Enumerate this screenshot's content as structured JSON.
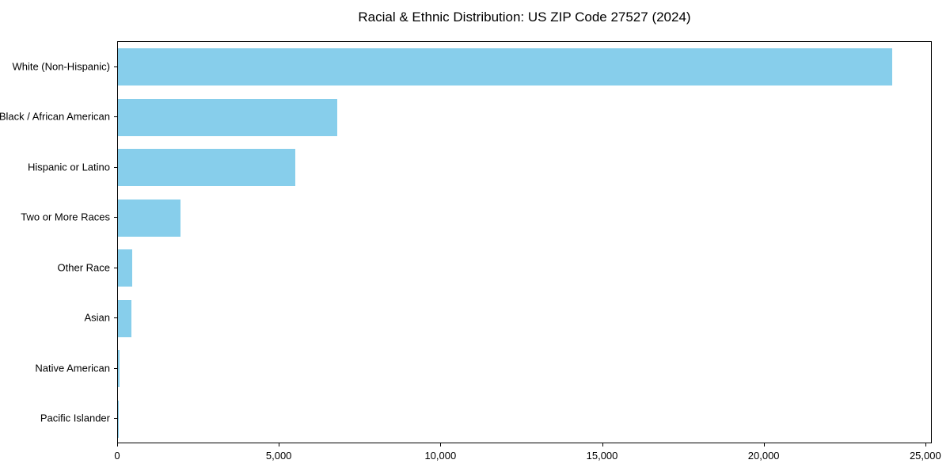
{
  "chart_data": {
    "type": "bar",
    "orientation": "horizontal",
    "title": "Racial & Ethnic Distribution: US ZIP Code 27527 (2024)",
    "categories": [
      "White (Non-Hispanic)",
      "Black / African American",
      "Hispanic or Latino",
      "Two or More Races",
      "Other Race",
      "Asian",
      "Native American",
      "Pacific Islander"
    ],
    "values": [
      24000,
      6800,
      5500,
      1950,
      450,
      410,
      50,
      10
    ],
    "xlabel": "",
    "ylabel": "",
    "xlim": [
      0,
      25200
    ],
    "x_ticks": [
      {
        "value": 0,
        "label": "0"
      },
      {
        "value": 5000,
        "label": "5,000"
      },
      {
        "value": 10000,
        "label": "10,000"
      },
      {
        "value": 15000,
        "label": "15,000"
      },
      {
        "value": 20000,
        "label": "20,000"
      },
      {
        "value": 25000,
        "label": "25,000"
      }
    ],
    "bar_color": "#87CEEB",
    "spine_color": "#000000",
    "background": "#FFFFFF",
    "grid": false,
    "legend": false
  }
}
